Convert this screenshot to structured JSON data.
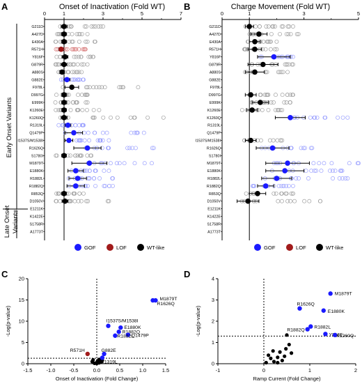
{
  "panels": {
    "A": {
      "letter": "A",
      "title": "Onset of Inactivation (Fold WT)"
    },
    "B": {
      "letter": "B",
      "title": "Charge Movement (Fold WT)"
    },
    "C": {
      "letter": "C"
    },
    "D": {
      "letter": "D"
    }
  },
  "groups": {
    "early": "Early Onset Variants",
    "late_line1": "Late Onset",
    "late_line2": "Variants"
  },
  "legend": {
    "gof": "GOF",
    "lof": "LOF",
    "wt": "WT-like"
  },
  "colors": {
    "gof": "#1a1aff",
    "lof": "#a11b1b",
    "wt": "#000000",
    "gof_light": "#9aa0ff",
    "wt_light": "#a0a0a0",
    "lof_light": "#d87b7b"
  },
  "chart_data": [
    {
      "id": "A",
      "type": "scatter",
      "title": "Onset of Inactivation (Fold WT)",
      "xlim": [
        0,
        7
      ],
      "xticks": [
        "0",
        "1",
        "3",
        "5",
        "7"
      ],
      "variants": [
        "G211D",
        "A427D",
        "E430A",
        "R571H",
        "Y816F",
        "G879R",
        "A880S",
        "G882E",
        "F978L",
        "D997G",
        "E999K",
        "K1260E",
        "K1260Q",
        "R1319L",
        "Q1479P",
        "I1537S/M1538I",
        "R1626Q",
        "S1780I",
        "M1879T",
        "E1880K",
        "R1882L",
        "R1882Q",
        "R853Q",
        "D1050V",
        "E1211K",
        "K1422E",
        "S1758R",
        "A1773T"
      ],
      "rows": [
        {
          "v": "G211D",
          "mean": 1.0,
          "sd": 0.15,
          "cls": "wt",
          "max": 3.0
        },
        {
          "v": "A427D",
          "mean": 1.0,
          "sd": 0.12,
          "cls": "wt",
          "max": 2.2
        },
        {
          "v": "E430A",
          "mean": 1.0,
          "sd": 0.12,
          "cls": "wt",
          "max": 2.6
        },
        {
          "v": "R571H",
          "mean": 0.85,
          "sd": 0.12,
          "cls": "lof",
          "max": 2.1
        },
        {
          "v": "Y816F",
          "mean": 1.05,
          "sd": 0.15,
          "cls": "wt",
          "max": 2.5
        },
        {
          "v": "G879R",
          "mean": 1.0,
          "sd": 0.15,
          "cls": "wt",
          "max": 2.2
        },
        {
          "v": "A880S",
          "mean": 0.9,
          "sd": 0.12,
          "cls": "wt",
          "max": 1.9
        },
        {
          "v": "G882E",
          "mean": 1.15,
          "sd": 0.15,
          "cls": "gof",
          "max": 2.0
        },
        {
          "v": "F978L",
          "mean": 1.4,
          "sd": 0.35,
          "cls": "wt",
          "max": 4.8
        },
        {
          "v": "D997G",
          "mean": 1.0,
          "sd": 0.12,
          "cls": "wt",
          "max": 2.2
        },
        {
          "v": "E999K",
          "mean": 1.0,
          "sd": 0.12,
          "cls": "wt",
          "max": 2.2
        },
        {
          "v": "K1260E",
          "mean": 1.0,
          "sd": 0.12,
          "cls": "wt",
          "max": 2.8
        },
        {
          "v": "K1260Q",
          "mean": 1.0,
          "sd": 0.15,
          "cls": "wt",
          "max": 6.1
        },
        {
          "v": "R1319L",
          "mean": 1.2,
          "sd": 0.15,
          "cls": "gof",
          "max": 2.0
        },
        {
          "v": "Q1479P",
          "mean": 1.5,
          "sd": 0.45,
          "cls": "gof",
          "max": 5.1
        },
        {
          "v": "I1537S/M1538I",
          "mean": 1.25,
          "sd": 0.2,
          "cls": "gof",
          "max": 3.3
        },
        {
          "v": "R1626Q",
          "mean": 2.2,
          "sd": 0.7,
          "cls": "gof",
          "max": 5.6
        },
        {
          "v": "S1780I",
          "mean": 1.0,
          "sd": 0.12,
          "cls": "wt",
          "max": 2.4
        },
        {
          "v": "M1879T",
          "mean": 2.3,
          "sd": 0.9,
          "cls": "gof",
          "max": 5.5
        },
        {
          "v": "E1880K",
          "mean": 1.6,
          "sd": 0.4,
          "cls": "gof",
          "max": 3.3
        },
        {
          "v": "R1882L",
          "mean": 1.7,
          "sd": 0.45,
          "cls": "gof",
          "max": 3.5
        },
        {
          "v": "R1882Q",
          "mean": 1.6,
          "sd": 0.45,
          "cls": "gof",
          "max": 3.5
        },
        {
          "v": "R853Q",
          "mean": 1.0,
          "sd": 0.12,
          "cls": "wt",
          "max": 2.0
        },
        {
          "v": "D1050V",
          "mean": 1.05,
          "sd": 0.15,
          "cls": "wt",
          "max": 3.3
        },
        {
          "v": "E1211K",
          "mean": null,
          "sd": null,
          "cls": "none",
          "max": null
        },
        {
          "v": "K1422E",
          "mean": null,
          "sd": null,
          "cls": "none",
          "max": null
        },
        {
          "v": "S1758R",
          "mean": null,
          "sd": null,
          "cls": "none",
          "max": null
        },
        {
          "v": "A1773T",
          "mean": null,
          "sd": null,
          "cls": "none",
          "max": null
        }
      ]
    },
    {
      "id": "B",
      "type": "scatter",
      "title": "Charge Movement (Fold WT)",
      "xlim": [
        0,
        5
      ],
      "xticks": [
        "0",
        "1",
        "3",
        "5"
      ],
      "rows": [
        {
          "v": "G211D",
          "mean": 1.0,
          "sd": 0.15,
          "cls": "wt",
          "max": 2.6
        },
        {
          "v": "A427D",
          "mean": 1.35,
          "sd": 0.3,
          "cls": "wt",
          "max": 2.8
        },
        {
          "v": "E430A",
          "mean": 1.2,
          "sd": 0.2,
          "cls": "wt",
          "max": 2.0
        },
        {
          "v": "R571H",
          "mean": 1.2,
          "sd": 0.25,
          "cls": "wt",
          "max": 2.0
        },
        {
          "v": "Y816F",
          "mean": 1.9,
          "sd": 0.6,
          "cls": "gof",
          "max": 2.6
        },
        {
          "v": "G879R",
          "mean": 1.5,
          "sd": 0.55,
          "cls": "wt",
          "max": 2.6
        },
        {
          "v": "A880S",
          "mean": 1.2,
          "sd": 0.35,
          "cls": "wt",
          "max": 2.4
        },
        {
          "v": "G882E",
          "mean": null,
          "sd": null,
          "cls": "none",
          "max": null
        },
        {
          "v": "F978L",
          "mean": null,
          "sd": null,
          "cls": "none",
          "max": null
        },
        {
          "v": "D997G",
          "mean": 1.05,
          "sd": 0.2,
          "cls": "wt",
          "max": 2.6
        },
        {
          "v": "E999K",
          "mean": 1.4,
          "sd": 0.3,
          "cls": "wt",
          "max": 2.5
        },
        {
          "v": "K1260E",
          "mean": 1.1,
          "sd": 0.2,
          "cls": "wt",
          "max": 2.2
        },
        {
          "v": "K1260Q",
          "mean": 2.5,
          "sd": 0.55,
          "cls": "gof",
          "max": 4.6
        },
        {
          "v": "R1319L",
          "mean": null,
          "sd": null,
          "cls": "none",
          "max": null
        },
        {
          "v": "Q1479P",
          "mean": null,
          "sd": null,
          "cls": "none",
          "max": null
        },
        {
          "v": "I1537S/M1538I",
          "mean": 1.05,
          "sd": 0.2,
          "cls": "wt",
          "max": 2.2
        },
        {
          "v": "R1626Q",
          "mean": 1.85,
          "sd": 0.6,
          "cls": "gof",
          "max": 3.3
        },
        {
          "v": "S1780I",
          "mean": null,
          "sd": null,
          "cls": "none",
          "max": null
        },
        {
          "v": "M1879T",
          "mean": 2.4,
          "sd": 0.8,
          "cls": "gof",
          "max": 5.0
        },
        {
          "v": "E1880K",
          "mean": 2.3,
          "sd": 0.7,
          "cls": "gof",
          "max": 4.4
        },
        {
          "v": "R1882L",
          "mean": 2.0,
          "sd": 0.55,
          "cls": "gof",
          "max": 4.6
        },
        {
          "v": "R1882Q",
          "mean": 1.6,
          "sd": 0.3,
          "cls": "gof",
          "max": 2.6
        },
        {
          "v": "R853Q",
          "mean": 1.3,
          "sd": 0.3,
          "cls": "wt",
          "max": 2.6
        },
        {
          "v": "D1050V",
          "mean": 0.95,
          "sd": 0.4,
          "cls": "wt",
          "max": 3.6
        },
        {
          "v": "E1211K",
          "mean": null,
          "sd": null,
          "cls": "none",
          "max": null
        },
        {
          "v": "K1422E",
          "mean": null,
          "sd": null,
          "cls": "none",
          "max": null
        },
        {
          "v": "S1758R",
          "mean": null,
          "sd": null,
          "cls": "none",
          "max": null
        },
        {
          "v": "A1773T",
          "mean": null,
          "sd": null,
          "cls": "none",
          "max": null
        }
      ]
    },
    {
      "id": "C",
      "type": "scatter",
      "xlabel": "Onset of Inactivation (Fold Change)",
      "ylabel": "-Log(p-value)",
      "xlim": [
        -1.5,
        1.5
      ],
      "ylim": [
        0,
        20
      ],
      "xticks": [
        "-1.5",
        "-1.0",
        "-0.5",
        "0.0",
        "0.5",
        "1.0",
        "1.5"
      ],
      "yticks": [
        "0",
        "5",
        "10",
        "15",
        "20"
      ],
      "threshold_y": 1.3,
      "labeled": [
        {
          "label": "M1879T",
          "x": 1.28,
          "y": 14.9,
          "cls": "gof"
        },
        {
          "label": "R1626Q",
          "x": 1.22,
          "y": 14.9,
          "cls": "gof"
        },
        {
          "label": "I1537S/M1538I",
          "x": 0.25,
          "y": 8.9,
          "cls": "gof"
        },
        {
          "label": "E1880K",
          "x": 0.52,
          "y": 8.5,
          "cls": "gof"
        },
        {
          "label": "R1882Q",
          "x": 0.48,
          "y": 7.5,
          "cls": "gof"
        },
        {
          "label": "Q1479P",
          "x": 0.68,
          "y": 6.8,
          "cls": "gof"
        },
        {
          "label": "R1882L",
          "x": 0.4,
          "y": 6.6,
          "cls": "gof"
        },
        {
          "label": "R571H",
          "x": -0.2,
          "y": 2.3,
          "cls": "lof"
        },
        {
          "label": "G882E",
          "x": 0.16,
          "y": 2.3,
          "cls": "gof"
        },
        {
          "label": "R1319L",
          "x": 0.12,
          "y": 1.4,
          "cls": "gof"
        }
      ],
      "unlabeled": [
        {
          "x": -0.05,
          "y": 0.1
        },
        {
          "x": 0.0,
          "y": 0.3
        },
        {
          "x": 0.05,
          "y": 0.2
        },
        {
          "x": -0.1,
          "y": 0.5
        },
        {
          "x": 0.1,
          "y": 0.4
        },
        {
          "x": 0.02,
          "y": 0.7
        },
        {
          "x": -0.08,
          "y": 0.9
        },
        {
          "x": 0.06,
          "y": 1.0
        },
        {
          "x": 0.0,
          "y": 0.05
        },
        {
          "x": 0.12,
          "y": 0.8
        }
      ]
    },
    {
      "id": "D",
      "type": "scatter",
      "xlabel": "Ramp Current (Fold Change)",
      "ylabel": "-Log(p-value)",
      "xlim": [
        -1,
        2
      ],
      "ylim": [
        0,
        4
      ],
      "xticks": [
        "-1",
        "0",
        "1",
        "2"
      ],
      "yticks": [
        "0",
        "1",
        "2",
        "3",
        "4"
      ],
      "threshold_y": 1.3,
      "labeled": [
        {
          "label": "M1879T",
          "x": 1.45,
          "y": 3.3,
          "cls": "gof"
        },
        {
          "label": "R1626Q",
          "x": 0.78,
          "y": 2.6,
          "cls": "gof"
        },
        {
          "label": "E1880K",
          "x": 1.3,
          "y": 2.5,
          "cls": "gof"
        },
        {
          "label": "R1882L",
          "x": 1.02,
          "y": 1.75,
          "cls": "gof"
        },
        {
          "label": "R1882Q",
          "x": 0.95,
          "y": 1.62,
          "cls": "gof"
        },
        {
          "label": "Y816F",
          "x": 1.34,
          "y": 1.4,
          "cls": "gof"
        },
        {
          "label": "K1260Q",
          "x": 1.55,
          "y": 1.35,
          "cls": "gof"
        }
      ],
      "unlabeled": [
        {
          "x": 0.05,
          "y": 0.05
        },
        {
          "x": 0.15,
          "y": 0.25
        },
        {
          "x": 0.22,
          "y": 0.1
        },
        {
          "x": 0.3,
          "y": 0.3
        },
        {
          "x": 0.1,
          "y": 0.4
        },
        {
          "x": 0.35,
          "y": 0.55
        },
        {
          "x": 0.48,
          "y": 0.7
        },
        {
          "x": 0.55,
          "y": 0.9
        },
        {
          "x": 0.4,
          "y": 0.15
        },
        {
          "x": 0.2,
          "y": 0.6
        },
        {
          "x": 0.6,
          "y": 0.5
        },
        {
          "x": 0.3,
          "y": 0.05
        },
        {
          "x": 0.45,
          "y": 0.35
        },
        {
          "x": 0.5,
          "y": 1.35
        }
      ]
    }
  ]
}
